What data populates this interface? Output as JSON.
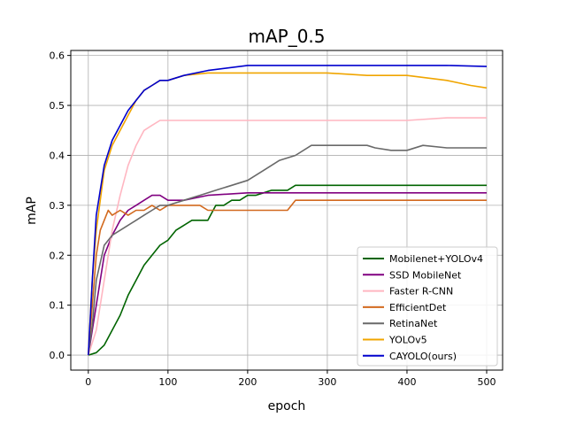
{
  "chart_data": {
    "type": "line",
    "title": "mAP_0.5",
    "xlabel": "epoch",
    "ylabel": "mAP",
    "xlim": [
      -22,
      520
    ],
    "ylim": [
      -0.03,
      0.61
    ],
    "xticks": [
      0,
      100,
      200,
      300,
      400,
      500
    ],
    "yticks": [
      0.0,
      0.1,
      0.2,
      0.3,
      0.4,
      0.5,
      0.6
    ],
    "xtick_labels": [
      "0",
      "100",
      "200",
      "300",
      "400",
      "500"
    ],
    "ytick_labels": [
      "0.0",
      "0.1",
      "0.2",
      "0.3",
      "0.4",
      "0.5",
      "0.6"
    ],
    "grid": true,
    "legend_position": "lower-right",
    "series": [
      {
        "name": "Mobilenet+YOLOv4",
        "color": "#006400",
        "x": [
          0,
          10,
          20,
          30,
          40,
          50,
          60,
          70,
          80,
          90,
          100,
          110,
          120,
          130,
          140,
          150,
          160,
          170,
          180,
          190,
          200,
          210,
          220,
          230,
          240,
          250,
          260,
          280,
          300,
          350,
          400,
          450,
          500
        ],
        "y": [
          0.0,
          0.005,
          0.02,
          0.05,
          0.08,
          0.12,
          0.15,
          0.18,
          0.2,
          0.22,
          0.23,
          0.25,
          0.26,
          0.27,
          0.27,
          0.27,
          0.3,
          0.3,
          0.31,
          0.31,
          0.32,
          0.32,
          0.325,
          0.33,
          0.33,
          0.33,
          0.34,
          0.34,
          0.34,
          0.34,
          0.34,
          0.34,
          0.34
        ]
      },
      {
        "name": "SSD MobileNet",
        "color": "#800080",
        "x": [
          0,
          5,
          10,
          20,
          30,
          40,
          50,
          60,
          70,
          80,
          90,
          100,
          120,
          150,
          200,
          250,
          300,
          350,
          400,
          450,
          500
        ],
        "y": [
          0.0,
          0.05,
          0.1,
          0.2,
          0.24,
          0.27,
          0.29,
          0.3,
          0.31,
          0.32,
          0.32,
          0.31,
          0.31,
          0.32,
          0.325,
          0.325,
          0.325,
          0.325,
          0.325,
          0.325,
          0.325
        ]
      },
      {
        "name": "Faster R-CNN",
        "color": "#FFB6C1",
        "x": [
          0,
          10,
          20,
          30,
          40,
          50,
          60,
          70,
          80,
          90,
          100,
          120,
          150,
          200,
          250,
          300,
          350,
          400,
          450,
          500
        ],
        "y": [
          0.0,
          0.05,
          0.15,
          0.25,
          0.32,
          0.38,
          0.42,
          0.45,
          0.46,
          0.47,
          0.47,
          0.47,
          0.47,
          0.47,
          0.47,
          0.47,
          0.47,
          0.47,
          0.475,
          0.475
        ]
      },
      {
        "name": "EfficientDet",
        "color": "#D2691E",
        "x": [
          0,
          5,
          10,
          15,
          20,
          25,
          30,
          40,
          50,
          60,
          70,
          80,
          90,
          100,
          110,
          120,
          130,
          140,
          150,
          160,
          180,
          200,
          250,
          260,
          300,
          350,
          400,
          450,
          500
        ],
        "y": [
          0.0,
          0.1,
          0.2,
          0.25,
          0.27,
          0.29,
          0.28,
          0.29,
          0.28,
          0.29,
          0.29,
          0.3,
          0.29,
          0.3,
          0.3,
          0.3,
          0.3,
          0.3,
          0.29,
          0.29,
          0.29,
          0.29,
          0.29,
          0.31,
          0.31,
          0.31,
          0.31,
          0.31,
          0.31
        ]
      },
      {
        "name": "RetinaNet",
        "color": "#696969",
        "x": [
          0,
          5,
          10,
          20,
          30,
          40,
          50,
          60,
          70,
          80,
          90,
          100,
          120,
          140,
          160,
          180,
          200,
          220,
          240,
          260,
          280,
          300,
          350,
          360,
          380,
          400,
          420,
          450,
          500
        ],
        "y": [
          0.0,
          0.06,
          0.15,
          0.22,
          0.24,
          0.25,
          0.26,
          0.27,
          0.28,
          0.29,
          0.3,
          0.3,
          0.31,
          0.32,
          0.33,
          0.34,
          0.35,
          0.37,
          0.39,
          0.4,
          0.42,
          0.42,
          0.42,
          0.415,
          0.41,
          0.41,
          0.42,
          0.415,
          0.415
        ]
      },
      {
        "name": "YOLOv5",
        "color": "#F0A500",
        "x": [
          0,
          5,
          10,
          20,
          30,
          40,
          50,
          60,
          70,
          80,
          90,
          100,
          120,
          150,
          200,
          250,
          300,
          350,
          400,
          450,
          480,
          500
        ],
        "y": [
          0.0,
          0.15,
          0.25,
          0.37,
          0.42,
          0.45,
          0.48,
          0.51,
          0.53,
          0.54,
          0.55,
          0.55,
          0.56,
          0.565,
          0.565,
          0.565,
          0.565,
          0.56,
          0.56,
          0.55,
          0.54,
          0.535
        ]
      },
      {
        "name": "CAYOLO(ours)",
        "color": "#0000CD",
        "x": [
          0,
          5,
          10,
          20,
          30,
          40,
          50,
          60,
          70,
          80,
          90,
          100,
          120,
          150,
          200,
          250,
          300,
          350,
          400,
          450,
          500
        ],
        "y": [
          0.0,
          0.15,
          0.28,
          0.38,
          0.43,
          0.46,
          0.49,
          0.51,
          0.53,
          0.54,
          0.55,
          0.55,
          0.56,
          0.57,
          0.58,
          0.58,
          0.58,
          0.58,
          0.58,
          0.58,
          0.578
        ]
      }
    ]
  }
}
